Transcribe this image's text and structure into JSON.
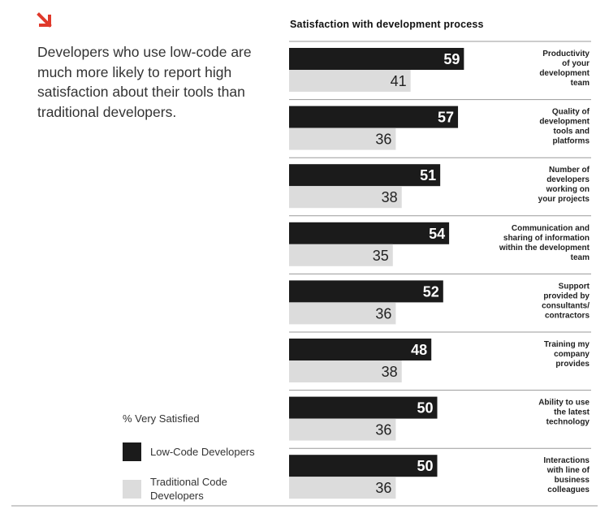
{
  "intro_text": "Developers who use low-code are much more likely to report high satisfaction about their tools than traditional developers.",
  "colors": {
    "accent": "#e0392b",
    "low_code": "#1b1b1b",
    "traditional": "#dcdcdc"
  },
  "icons": {
    "header_icon": "arrow-down-right-icon"
  },
  "legend": {
    "title": "% Very Satisfied",
    "items": [
      {
        "label": "Low-Code Developers"
      },
      {
        "label": "Traditional Code Developers"
      }
    ]
  },
  "chart_data": {
    "type": "bar",
    "orientation": "horizontal",
    "title": "Satisfaction with development process",
    "categories": [
      "Productivity of your development team",
      "Quality of development tools and platforms",
      "Number of developers working on your projects",
      "Communication and sharing of information within the development team",
      "Support provided by consultants/ contractors",
      "Training my company provides",
      "Ability to use the latest technology",
      "Interactions with line of business colleagues"
    ],
    "series": [
      {
        "name": "Low-Code Developers",
        "values": [
          59,
          57,
          51,
          54,
          52,
          48,
          50,
          50
        ]
      },
      {
        "name": "Traditional Code Developers",
        "values": [
          41,
          36,
          38,
          35,
          36,
          38,
          36,
          36
        ]
      }
    ],
    "xlim": [
      0,
      100
    ],
    "grid": false,
    "legend_position": "bottom-left"
  }
}
